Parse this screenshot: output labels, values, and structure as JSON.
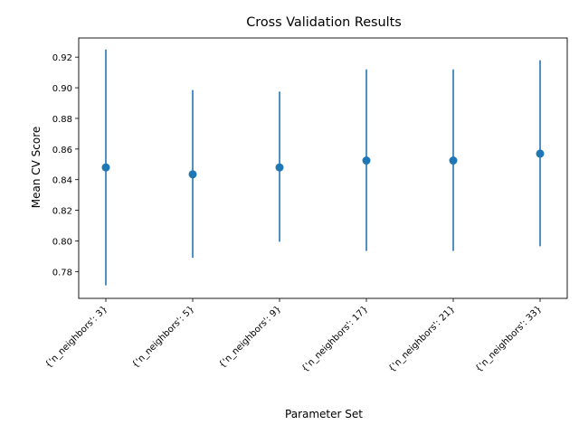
{
  "chart_data": {
    "type": "scatter",
    "title": "Cross Validation Results",
    "xlabel": "Parameter Set",
    "ylabel": "Mean CV Score",
    "categories": [
      "{'n_neighbors': 3}",
      "{'n_neighbors': 5}",
      "{'n_neighbors': 9}",
      "{'n_neighbors': 17}",
      "{'n_neighbors': 21}",
      "{'n_neighbors': 33}"
    ],
    "series": [
      {
        "values": [
          0.848,
          0.8435,
          0.848,
          0.8525,
          0.8525,
          0.857
        ],
        "error_low": [
          0.771,
          0.789,
          0.7995,
          0.7935,
          0.7935,
          0.7965
        ],
        "error_high": [
          0.925,
          0.8985,
          0.8975,
          0.912,
          0.912,
          0.918
        ]
      }
    ],
    "ylim": [
      0.7625,
      0.9325
    ],
    "yticks": [
      "0.78",
      "0.80",
      "0.82",
      "0.84",
      "0.86",
      "0.88",
      "0.90",
      "0.92"
    ],
    "grid": false,
    "colors": {
      "series": "#1f77b4",
      "axis": "#000000"
    }
  }
}
